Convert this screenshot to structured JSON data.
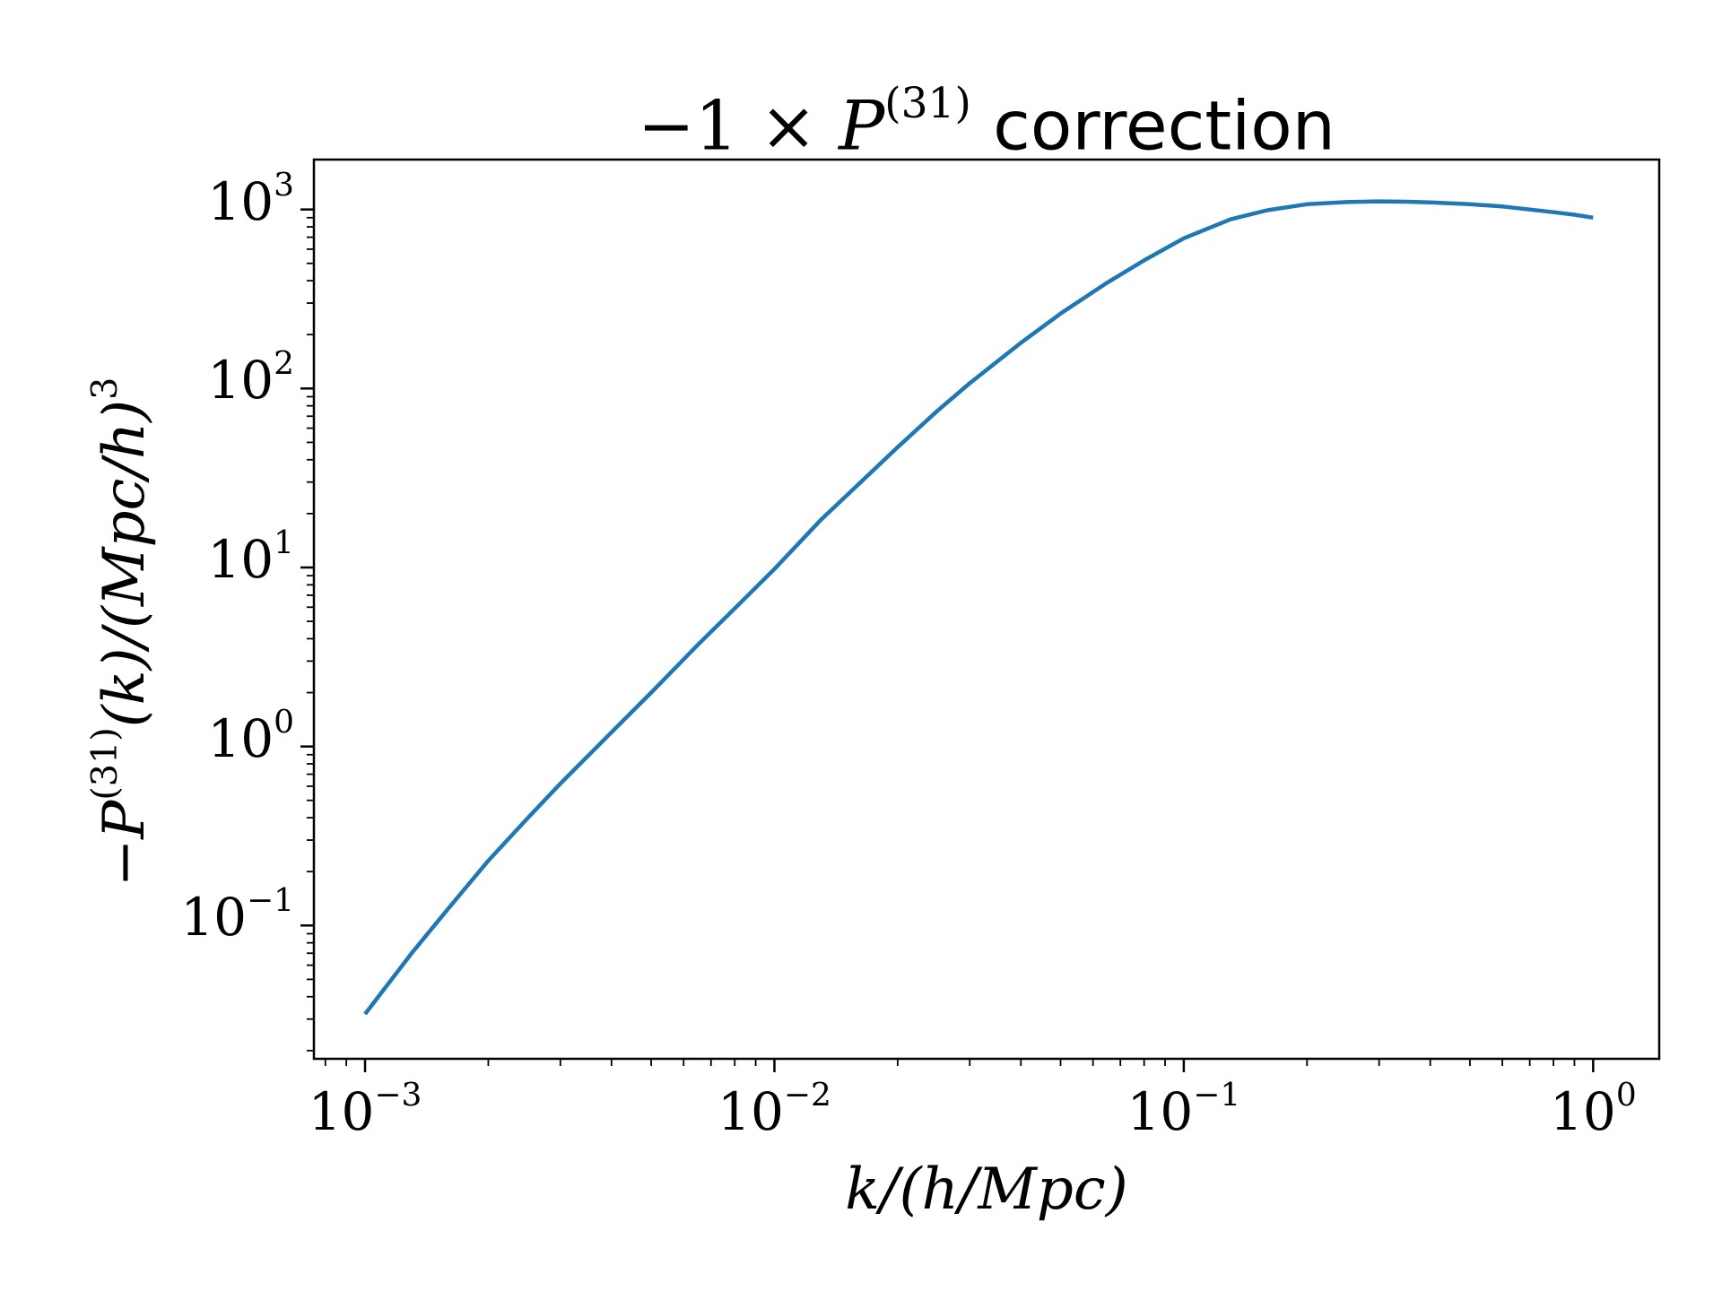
{
  "chart_data": {
    "type": "line",
    "title": {
      "prefix": "−1 × ",
      "symbol": "P",
      "superscript": "(31)",
      "suffix": " correction"
    },
    "xlabel": {
      "text": "k/(h/Mpc)"
    },
    "ylabel": {
      "text": "−P",
      "superscript": "(31)",
      "rest": "(k)/(Mpc/h)",
      "rest_superscript": "3"
    },
    "xscale": "log",
    "yscale": "log",
    "xlim": [
      0.00075,
      1.45
    ],
    "ylim": [
      0.018,
      1900
    ],
    "grid": false,
    "xticks": [
      {
        "value": 0.001,
        "base": "10",
        "exp": "−3"
      },
      {
        "value": 0.01,
        "base": "10",
        "exp": "−2"
      },
      {
        "value": 0.1,
        "base": "10",
        "exp": "−1"
      },
      {
        "value": 1,
        "base": "10",
        "exp": "0"
      }
    ],
    "yticks": [
      {
        "value": 0.1,
        "base": "10",
        "exp": "−1"
      },
      {
        "value": 1,
        "base": "10",
        "exp": "0"
      },
      {
        "value": 10,
        "base": "10",
        "exp": "1"
      },
      {
        "value": 100,
        "base": "10",
        "exp": "2"
      },
      {
        "value": 1000,
        "base": "10",
        "exp": "3"
      }
    ],
    "series": [
      {
        "color": "#1f77b4",
        "x": [
          0.001,
          0.0013,
          0.0016,
          0.002,
          0.0025,
          0.003,
          0.004,
          0.005,
          0.0065,
          0.008,
          0.01,
          0.013,
          0.016,
          0.02,
          0.025,
          0.03,
          0.04,
          0.05,
          0.065,
          0.08,
          0.1,
          0.13,
          0.16,
          0.2,
          0.25,
          0.3,
          0.35,
          0.4,
          0.5,
          0.6,
          0.7,
          0.8,
          0.9,
          1.0
        ],
        "y": [
          0.032,
          0.07,
          0.125,
          0.23,
          0.4,
          0.62,
          1.2,
          2.0,
          3.7,
          5.9,
          9.8,
          18.5,
          29,
          47,
          75,
          107,
          180,
          262,
          390,
          520,
          690,
          880,
          990,
          1070,
          1100,
          1110,
          1105,
          1095,
          1070,
          1040,
          1000,
          965,
          935,
          900
        ]
      }
    ]
  }
}
